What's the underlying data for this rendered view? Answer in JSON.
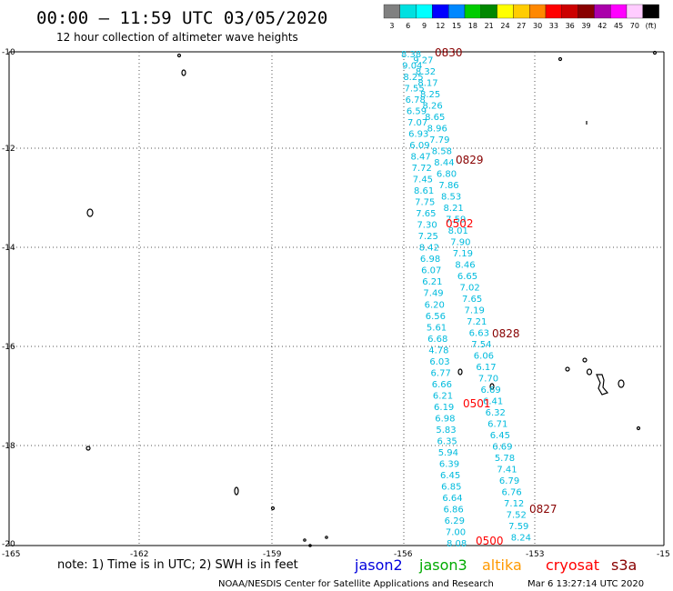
{
  "header": {
    "title": "00:00 – 11:59 UTC 03/05/2020",
    "subtitle": "12 hour collection of altimeter wave heights"
  },
  "colorbar": {
    "colors": [
      "#808080",
      "#00e0e0",
      "#00ffff",
      "#0000ff",
      "#0088ff",
      "#00cc00",
      "#008800",
      "#ffff00",
      "#ffcc00",
      "#ff8800",
      "#ff0000",
      "#cc0000",
      "#880000",
      "#aa00aa",
      "#ff00ff",
      "#ffccff",
      "#000000"
    ],
    "labels": [
      "3",
      "6",
      "9",
      "12",
      "15",
      "18",
      "21",
      "24",
      "27",
      "30",
      "33",
      "36",
      "39",
      "42",
      "45",
      "70",
      "(ft)"
    ]
  },
  "axes": {
    "y_labels": [
      "-10",
      "-12",
      "-14",
      "-16",
      "-18",
      "-20"
    ],
    "x_labels": [
      "-165",
      "-162",
      "-159",
      "-156",
      "-153",
      "-15"
    ]
  },
  "track": {
    "color": "#00bbdd",
    "values_a": [
      "8.38",
      "9.27",
      "9.04",
      "8.32",
      "8.25",
      "8.17",
      "7.55",
      "8.25",
      "6.78",
      "8.26",
      "6.59",
      "8.65",
      "7.07",
      "8.96",
      "6.93",
      "7.79",
      "6.09",
      "8.58",
      "8.47",
      "8.44",
      "7.72",
      "6.80",
      "7.45",
      "7.86",
      "8.61",
      "8.53",
      "7.75",
      "8.21",
      "7.65",
      "7.59",
      "7.30",
      "8.01",
      "7.25",
      "7.90",
      "8.42",
      "7.19",
      "6.98",
      "8.46",
      "6.07",
      "6.65",
      "6.21",
      "7.02",
      "7.49",
      "7.65",
      "6.20",
      "7.19",
      "6.56",
      "7.21",
      "5.61",
      "6.63",
      "6.68",
      "7.54",
      "4.78",
      "6.06",
      "6.03",
      "6.17",
      "6.77",
      "7.70",
      "6.66",
      "6.69",
      "6.21",
      "6.41",
      "6.19",
      "6.32",
      "6.98",
      "6.71",
      "5.83",
      "6.45",
      "6.35",
      "6.69",
      "5.94",
      "5.78",
      "6.39",
      "7.41",
      "6.45",
      "6.79",
      "6.85",
      "6.76",
      "6.64",
      "7.12",
      "6.86",
      "7.52",
      "6.29",
      "7.59",
      "7.00",
      "8.24",
      "8.08"
    ]
  },
  "time_labels": [
    {
      "text": "0830",
      "color": "#880000"
    },
    {
      "text": "0829",
      "color": "#880000"
    },
    {
      "text": "0502",
      "color": "#ff0000"
    },
    {
      "text": "0828",
      "color": "#880000"
    },
    {
      "text": "0501",
      "color": "#ff0000"
    },
    {
      "text": "0827",
      "color": "#880000"
    },
    {
      "text": "0500",
      "color": "#ff0000"
    }
  ],
  "footer": {
    "note": "note: 1) Time is in UTC; 2) SWH is in feet",
    "satellites": [
      {
        "name": "jason2",
        "color": "#0000dd"
      },
      {
        "name": "jason3",
        "color": "#00aa00"
      },
      {
        "name": "altika",
        "color": "#ff9900"
      },
      {
        "name": "cryosat",
        "color": "#ff0000"
      },
      {
        "name": "s3a",
        "color": "#880000"
      }
    ],
    "credit": "NOAA/NESDIS Center for Satellite Applications and Research",
    "timestamp": "Mar  6 13:27:14 UTC 2020"
  }
}
